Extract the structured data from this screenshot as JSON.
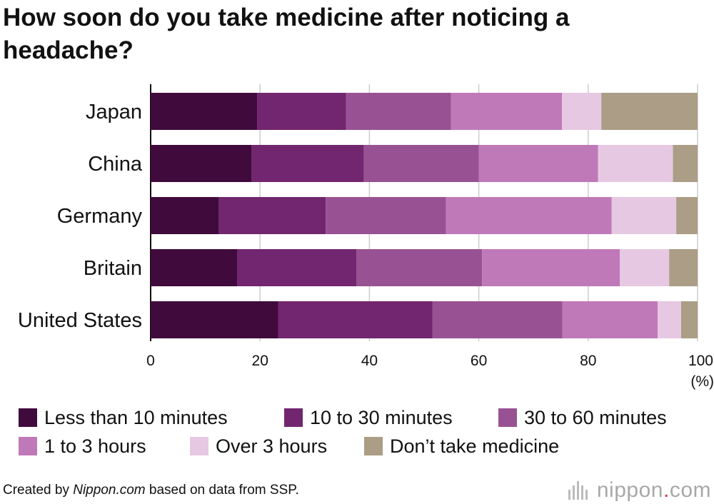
{
  "chart_data": {
    "type": "bar",
    "orientation": "horizontal",
    "stacked": true,
    "title": "How soon do you take medicine after noticing a headache?",
    "categories": [
      "Japan",
      "China",
      "Germany",
      "Britain",
      "United States"
    ],
    "series": [
      {
        "name": "Less than 10 minutes",
        "color": "#400a3c",
        "values": [
          19.5,
          18.5,
          12.5,
          15.8,
          23.3
        ]
      },
      {
        "name": "10 to 30 minutes",
        "color": "#72266f",
        "values": [
          16.2,
          20.5,
          19.5,
          21.8,
          28.2
        ]
      },
      {
        "name": "30 to 60 minutes",
        "color": "#985293",
        "values": [
          19.2,
          21.0,
          22.0,
          23.0,
          23.8
        ]
      },
      {
        "name": "1 to 3 hours",
        "color": "#bf79b9",
        "values": [
          20.3,
          21.8,
          30.3,
          25.2,
          17.4
        ]
      },
      {
        "name": "Over 3 hours",
        "color": "#e6c8e2",
        "values": [
          7.2,
          13.7,
          11.8,
          9.0,
          4.3
        ]
      },
      {
        "name": "Don’t take medicine",
        "color": "#ab9d86",
        "values": [
          17.6,
          4.5,
          3.9,
          5.2,
          3.0
        ]
      }
    ],
    "xlim": [
      0,
      100
    ],
    "xticks": [
      0,
      20,
      40,
      60,
      80,
      100
    ],
    "xunit": "(%)",
    "grid": true,
    "legend_position": "bottom"
  },
  "footer": {
    "prefix": "Created by ",
    "source_italic": "Nippon.com",
    "suffix": " based on data from SSP."
  },
  "logo": {
    "name": "nippon",
    "dot": ".",
    "tld": "com"
  }
}
